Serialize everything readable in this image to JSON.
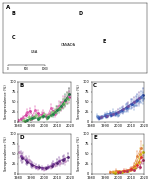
{
  "chart_data": [
    {
      "type": "map",
      "title": "A",
      "annotations": [
        "B",
        "C",
        "D",
        "E",
        "USA",
        "CANADA"
      ],
      "xlim": [
        0,
        1000
      ],
      "xticks": [
        0,
        500,
        1000
      ]
    },
    {
      "type": "line",
      "title": "B",
      "ylabel": "Seroprevalence (%)",
      "xlim": [
        1980,
        2020
      ],
      "xticks": [
        1980,
        1990,
        2000,
        2010,
        2020
      ],
      "ylim": [
        0,
        100
      ],
      "yticks": [
        0,
        25,
        50,
        75,
        100
      ],
      "grid": false,
      "marker": "o",
      "line_style": "solid",
      "series": [
        {
          "color": "#e060b0",
          "x": [
            1980,
            1984,
            1987,
            1990,
            1993,
            1996,
            1999,
            2002,
            2005,
            2008,
            2011,
            2014,
            2017,
            2019
          ],
          "values": [
            5,
            10,
            25,
            8,
            30,
            15,
            22,
            12,
            35,
            20,
            40,
            50,
            60,
            70
          ],
          "yerr": [
            3,
            4,
            8,
            3,
            10,
            5,
            7,
            5,
            10,
            7,
            12,
            14,
            15,
            16
          ]
        },
        {
          "color": "#d040a0",
          "x": [
            1982,
            1986,
            1989,
            1992,
            1995,
            1998,
            2001,
            2004,
            2007,
            2010,
            2013,
            2016,
            2019
          ],
          "values": [
            8,
            18,
            28,
            12,
            22,
            18,
            15,
            20,
            28,
            32,
            38,
            52,
            62
          ],
          "yerr": [
            3,
            5,
            8,
            4,
            7,
            6,
            5,
            6,
            8,
            9,
            11,
            14,
            15
          ]
        },
        {
          "color": "#90cc80",
          "x": [
            1984,
            1988,
            1991,
            1994,
            1997,
            2000,
            2003,
            2006,
            2009,
            2012,
            2015,
            2018
          ],
          "values": [
            5,
            12,
            10,
            18,
            12,
            20,
            15,
            25,
            30,
            38,
            48,
            58
          ],
          "yerr": [
            2,
            4,
            4,
            5,
            4,
            6,
            5,
            7,
            9,
            11,
            13,
            14
          ]
        },
        {
          "color": "#50a050",
          "x": [
            1985,
            1989,
            1992,
            1996,
            1999,
            2002,
            2005,
            2008,
            2011,
            2014,
            2017
          ],
          "values": [
            3,
            8,
            12,
            10,
            15,
            10,
            18,
            25,
            32,
            45,
            60
          ],
          "yerr": [
            2,
            3,
            4,
            4,
            5,
            4,
            5,
            7,
            9,
            12,
            15
          ]
        },
        {
          "color": "#20804a",
          "x": [
            1987,
            1991,
            1995,
            1999,
            2003,
            2007,
            2010,
            2013,
            2016,
            2019
          ],
          "values": [
            4,
            10,
            8,
            14,
            12,
            20,
            30,
            40,
            55,
            70
          ],
          "yerr": [
            2,
            4,
            3,
            5,
            4,
            7,
            9,
            11,
            14,
            16
          ]
        }
      ]
    },
    {
      "type": "line",
      "title": "C",
      "ylabel": "Seroprevalence (%)",
      "xlim": [
        1980,
        2020
      ],
      "xticks": [
        1980,
        1990,
        2000,
        2010,
        2020
      ],
      "ylim": [
        0,
        100
      ],
      "yticks": [
        0,
        25,
        50,
        75,
        100
      ],
      "grid": false,
      "marker": "o",
      "line_style": "solid",
      "series": [
        {
          "color": "#80a0d0",
          "x": [
            1984,
            1988,
            1992,
            1996,
            2000,
            2004,
            2008,
            2012,
            2016,
            2019
          ],
          "values": [
            15,
            12,
            20,
            25,
            18,
            28,
            35,
            42,
            52,
            60
          ],
          "yerr": [
            5,
            4,
            6,
            7,
            5,
            8,
            9,
            11,
            13,
            14
          ]
        },
        {
          "color": "#5070c0",
          "x": [
            1985,
            1990,
            1994,
            1998,
            2002,
            2006,
            2010,
            2014,
            2018
          ],
          "values": [
            12,
            18,
            22,
            20,
            28,
            35,
            45,
            52,
            62
          ],
          "yerr": [
            4,
            5,
            6,
            6,
            8,
            9,
            12,
            13,
            15
          ]
        },
        {
          "color": "#3050b0",
          "x": [
            1986,
            1991,
            1995,
            1999,
            2003,
            2007,
            2011,
            2015,
            2019
          ],
          "values": [
            10,
            15,
            18,
            22,
            30,
            38,
            46,
            55,
            68
          ],
          "yerr": [
            4,
            5,
            5,
            6,
            8,
            10,
            12,
            14,
            16
          ]
        },
        {
          "color": "#7050a0",
          "x": [
            1987,
            1992,
            1996,
            2000,
            2004,
            2008,
            2012,
            2016
          ],
          "values": [
            12,
            16,
            20,
            25,
            32,
            40,
            50,
            60
          ],
          "yerr": [
            4,
            5,
            6,
            7,
            9,
            10,
            13,
            14
          ]
        }
      ]
    },
    {
      "type": "line",
      "title": "D",
      "ylabel": "Seroprevalence (%)",
      "xlim": [
        1980,
        2020
      ],
      "xticks": [
        1980,
        1990,
        2000,
        2010,
        2020
      ],
      "ylim": [
        0,
        100
      ],
      "yticks": [
        0,
        25,
        50,
        75,
        100
      ],
      "grid": false,
      "marker": "o",
      "line_style": "solid",
      "series": [
        {
          "color": "#c090c0",
          "x": [
            1981,
            1984,
            1988,
            1992,
            1995,
            2000,
            2005,
            2008,
            2012,
            2016
          ],
          "values": [
            55,
            42,
            35,
            20,
            15,
            12,
            18,
            22,
            28,
            32
          ],
          "yerr": [
            15,
            12,
            10,
            6,
            5,
            4,
            5,
            6,
            8,
            9
          ]
        },
        {
          "color": "#8040a0",
          "x": [
            1982,
            1986,
            1990,
            1994,
            1998,
            2003,
            2007,
            2011,
            2015
          ],
          "values": [
            45,
            35,
            25,
            18,
            15,
            18,
            25,
            32,
            38
          ],
          "yerr": [
            13,
            10,
            8,
            6,
            5,
            5,
            7,
            9,
            10
          ]
        },
        {
          "color": "#502070",
          "x": [
            1983,
            1987,
            1991,
            1996,
            2001,
            2006,
            2010,
            2014,
            2018
          ],
          "values": [
            40,
            30,
            22,
            16,
            14,
            20,
            28,
            35,
            42
          ],
          "yerr": [
            12,
            9,
            7,
            5,
            4,
            6,
            8,
            10,
            11
          ]
        }
      ]
    },
    {
      "type": "line",
      "title": "E",
      "ylabel": "Seroprevalence (%)",
      "xlim": [
        1980,
        2020
      ],
      "xticks": [
        1980,
        1990,
        2000,
        2010,
        2020
      ],
      "ylim": [
        0,
        100
      ],
      "yticks": [
        0,
        25,
        50,
        75,
        100
      ],
      "grid": false,
      "marker": "o",
      "line_style": "solid",
      "series": [
        {
          "color": "#e08040",
          "x": [
            1994,
            1999,
            2004,
            2009,
            2012,
            2015,
            2018
          ],
          "values": [
            5,
            8,
            6,
            10,
            20,
            45,
            65
          ],
          "yerr": [
            2,
            3,
            2,
            4,
            6,
            13,
            18
          ]
        },
        {
          "color": "#e0a020",
          "x": [
            1996,
            2001,
            2006,
            2011,
            2014,
            2017
          ],
          "values": [
            4,
            6,
            8,
            12,
            25,
            50
          ],
          "yerr": [
            2,
            2,
            3,
            4,
            7,
            14
          ]
        },
        {
          "color": "#d0c010",
          "x": [
            1998,
            2003,
            2008,
            2013,
            2016,
            2019
          ],
          "values": [
            3,
            5,
            7,
            15,
            30,
            55
          ],
          "yerr": [
            1,
            2,
            3,
            5,
            9,
            16
          ]
        },
        {
          "color": "#e03030",
          "x": [
            2000,
            2005,
            2010,
            2015,
            2018
          ],
          "values": [
            5,
            8,
            12,
            22,
            42
          ],
          "yerr": [
            2,
            3,
            4,
            7,
            13
          ]
        },
        {
          "color": "#b03060",
          "x": [
            2002,
            2007,
            2012,
            2017,
            2019
          ],
          "values": [
            4,
            7,
            10,
            18,
            35
          ],
          "yerr": [
            2,
            3,
            4,
            6,
            11
          ]
        }
      ]
    }
  ]
}
